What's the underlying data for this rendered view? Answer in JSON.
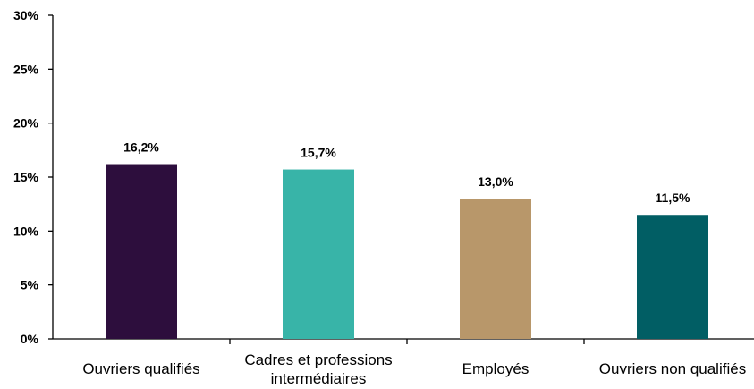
{
  "chart_data": {
    "type": "bar",
    "categories": [
      "Ouvriers qualifiés",
      "Cadres et professions intermédiaires",
      "Employés",
      "Ouvriers non qualifiés"
    ],
    "category_lines": [
      [
        "Ouvriers qualifiés"
      ],
      [
        "Cadres et professions",
        "intermédiaires"
      ],
      [
        "Employés"
      ],
      [
        "Ouvriers non qualifiés"
      ]
    ],
    "values": [
      16.2,
      15.7,
      13.0,
      11.5
    ],
    "value_labels": [
      "16,2%",
      "15,7%",
      "13,0%",
      "11,5%"
    ],
    "colors": [
      "#2d0e3d",
      "#38b4a8",
      "#b8976a",
      "#015e64"
    ],
    "ylim": [
      0,
      30
    ],
    "yticks": [
      0,
      5,
      10,
      15,
      20,
      25,
      30
    ],
    "ytick_labels": [
      "0%",
      "5%",
      "10%",
      "15%",
      "20%",
      "25%",
      "30%"
    ],
    "grid": false,
    "title": "",
    "xlabel": "",
    "ylabel": ""
  }
}
